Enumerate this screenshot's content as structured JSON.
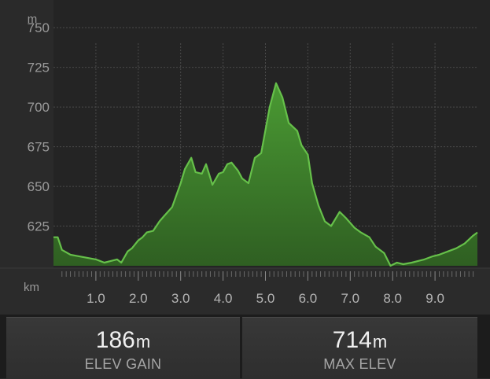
{
  "chart_data": {
    "type": "area",
    "y_unit_label": "m",
    "x_unit_label": "km",
    "y_ticks": [
      625,
      650,
      675,
      700,
      725,
      750
    ],
    "x_ticks": [
      "1.0",
      "2.0",
      "3.0",
      "4.0",
      "5.0",
      "6.0",
      "7.0",
      "8.0",
      "9.0"
    ],
    "ylim": [
      600,
      760
    ],
    "xlim": [
      0,
      10.0
    ],
    "grid": true,
    "colors": {
      "fill": "#3f7f2b",
      "line": "#66c04a",
      "background": "#242424"
    },
    "series": [
      {
        "x": [
          0.0,
          0.1,
          0.2,
          0.4,
          0.6,
          0.8,
          1.0,
          1.2,
          1.35,
          1.5,
          1.6,
          1.75,
          1.85,
          2.0,
          2.1,
          2.2,
          2.35,
          2.5,
          2.6,
          2.8,
          3.0,
          3.1,
          3.25,
          3.35,
          3.5,
          3.6,
          3.75,
          3.9,
          4.0,
          4.1,
          4.2,
          4.35,
          4.45,
          4.6,
          4.75,
          4.9,
          5.1,
          5.25,
          5.4,
          5.55,
          5.75,
          5.85,
          6.0,
          6.1,
          6.25,
          6.4,
          6.55,
          6.75,
          6.9,
          7.1,
          7.25,
          7.45,
          7.6,
          7.8,
          7.95,
          8.1,
          8.25,
          8.45,
          8.6,
          8.75,
          8.95,
          9.1,
          9.3,
          9.5,
          9.7,
          9.9,
          10.0
        ],
        "y": [
          618,
          618,
          610,
          607,
          606,
          605,
          604,
          602,
          603,
          604,
          602,
          609,
          611,
          616,
          618,
          621,
          622,
          628,
          631,
          637,
          652,
          661,
          668,
          659,
          658,
          664,
          651,
          658,
          659,
          664,
          665,
          660,
          655,
          652,
          668,
          671,
          700,
          715,
          706,
          690,
          685,
          676,
          670,
          652,
          638,
          628,
          625,
          634,
          630,
          624,
          621,
          618,
          612,
          608,
          600,
          602,
          601,
          602,
          603,
          604,
          606,
          607,
          609,
          611,
          614,
          619,
          621
        ]
      }
    ]
  },
  "stats": [
    {
      "value": "186",
      "unit": "m",
      "label": "ELEV GAIN"
    },
    {
      "value": "714",
      "unit": "m",
      "label": "MAX ELEV"
    }
  ]
}
